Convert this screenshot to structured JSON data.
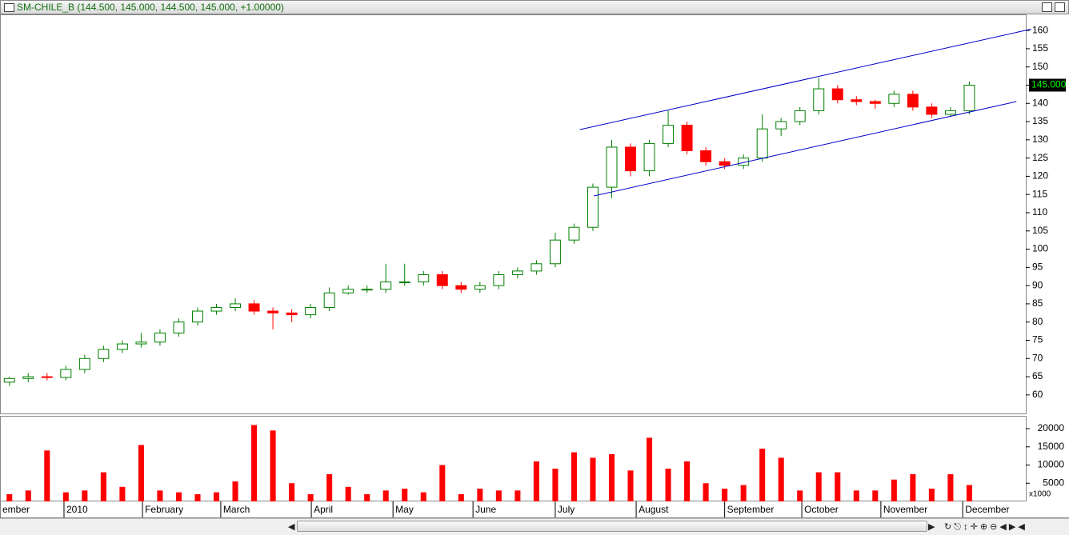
{
  "window_title": "SM-CHILE_B (144.500, 145.000, 144.500, 145.000, +1.00000)",
  "chart_data": [
    {
      "type": "candlestick",
      "x": [
        0,
        1,
        2,
        3,
        4,
        5,
        6,
        7,
        8,
        9,
        10,
        11,
        12,
        13,
        14,
        15,
        16,
        17,
        18,
        19,
        20,
        21,
        22,
        23,
        24,
        25,
        26,
        27,
        28,
        29,
        30,
        31,
        32,
        33,
        34,
        35,
        36,
        37,
        38,
        39,
        40,
        41,
        42,
        43,
        44,
        45,
        46,
        47,
        48,
        49,
        50,
        51
      ],
      "open": [
        63.5,
        64.5,
        65,
        64.8,
        67,
        70,
        72.5,
        74,
        74.5,
        77,
        80,
        83,
        84,
        85,
        83,
        82.5,
        82,
        84,
        88,
        89,
        89,
        91,
        91,
        93,
        90,
        89,
        90,
        93,
        94,
        96,
        102.5,
        106,
        117,
        128,
        121.5,
        129,
        134,
        127,
        124,
        123,
        125,
        133,
        135,
        138,
        144,
        141,
        140.5,
        140,
        142.5,
        139,
        137,
        138
      ],
      "high": [
        65,
        66,
        66,
        68,
        71,
        73.5,
        75,
        77,
        78,
        81,
        84,
        85,
        86.5,
        86,
        84,
        83.5,
        85,
        89.5,
        90,
        90,
        96,
        96,
        94,
        94,
        91,
        91,
        94,
        95,
        97,
        104.5,
        107,
        118,
        130,
        129,
        130,
        138,
        135,
        128,
        125,
        126,
        137,
        136,
        139,
        147,
        145,
        142,
        141,
        143.5,
        143.5,
        140,
        139,
        146
      ],
      "low": [
        62.5,
        63.5,
        64,
        64,
        66,
        69,
        71.5,
        73,
        73.5,
        76,
        79,
        82,
        83,
        82,
        78,
        80,
        81,
        83,
        87.5,
        88,
        88,
        90,
        90,
        89,
        88,
        88,
        89,
        92,
        93,
        95,
        101.5,
        105,
        114,
        120,
        120,
        128,
        126,
        123,
        122,
        122,
        124,
        131,
        134,
        137,
        140,
        139.5,
        138.5,
        139,
        138,
        136,
        136.5,
        137
      ],
      "close": [
        64.5,
        65,
        64.8,
        67,
        70,
        72.5,
        74,
        74.5,
        77,
        80,
        83,
        84,
        85,
        83,
        82.5,
        82,
        84,
        88,
        89,
        89,
        91,
        91,
        93,
        90,
        89,
        90,
        93,
        94,
        96,
        102.5,
        106,
        117,
        128,
        121.5,
        129,
        134,
        127,
        124,
        123,
        125,
        133,
        135,
        138,
        144,
        141,
        140.5,
        140,
        142.5,
        139,
        137,
        138,
        145
      ],
      "up_color": "#008000",
      "down_color": "#ff0000",
      "xlim": [
        -0.5,
        54
      ],
      "ylim": [
        54.7,
        164.2
      ],
      "yticks": [
        60,
        65,
        70,
        75,
        80,
        85,
        90,
        95,
        100,
        105,
        110,
        115,
        120,
        125,
        130,
        135,
        140,
        145,
        150,
        155,
        160
      ],
      "trendlines": [
        {
          "x": [
            30.3,
            54.3
          ],
          "y": [
            132.8,
            160.4
          ]
        },
        {
          "x": [
            31.05,
            53.5
          ],
          "y": [
            114.6,
            140.5
          ]
        }
      ],
      "trendline_color": "#0000cc",
      "last_price": {
        "value": 145,
        "label": "145.000"
      }
    },
    {
      "type": "bar",
      "x": [
        0,
        1,
        2,
        3,
        4,
        5,
        6,
        7,
        8,
        9,
        10,
        11,
        12,
        13,
        14,
        15,
        16,
        17,
        18,
        19,
        20,
        21,
        22,
        23,
        24,
        25,
        26,
        27,
        28,
        29,
        30,
        31,
        32,
        33,
        34,
        35,
        36,
        37,
        38,
        39,
        40,
        41,
        42,
        43,
        44,
        45,
        46,
        47,
        48,
        49,
        50,
        51
      ],
      "values": [
        2000,
        3000,
        14000,
        2500,
        3000,
        8000,
        4000,
        15500,
        3000,
        2500,
        2000,
        2500,
        5500,
        21000,
        19500,
        5000,
        2000,
        7500,
        4000,
        2000,
        3000,
        3500,
        2500,
        10000,
        2000,
        3500,
        3000,
        3000,
        11000,
        9000,
        13500,
        12000,
        13000,
        8500,
        17500,
        9000,
        11000,
        5000,
        3500,
        4500,
        14500,
        12000,
        3000,
        8000,
        8000,
        3000,
        3000,
        6000,
        7500,
        3500,
        7500,
        4500
      ],
      "color": "#ff0000",
      "xlim": [
        -0.5,
        54
      ],
      "ylim": [
        0,
        23300
      ],
      "yticks": [
        5000,
        10000,
        15000,
        20000
      ],
      "axis_note": "x1000",
      "xticks": [
        {
          "value": -0.5,
          "label": "ember"
        },
        {
          "value": 2.9,
          "label": "2010"
        },
        {
          "value": 7.07,
          "label": "February"
        },
        {
          "value": 11.23,
          "label": "March"
        },
        {
          "value": 16.04,
          "label": "April"
        },
        {
          "value": 20.38,
          "label": "May"
        },
        {
          "value": 24.63,
          "label": "June"
        },
        {
          "value": 29.0,
          "label": "July"
        },
        {
          "value": 33.3,
          "label": "August"
        },
        {
          "value": 38.0,
          "label": "September"
        },
        {
          "value": 42.1,
          "label": "October"
        },
        {
          "value": 46.3,
          "label": "November"
        },
        {
          "value": 50.65,
          "label": "December"
        }
      ]
    }
  ]
}
